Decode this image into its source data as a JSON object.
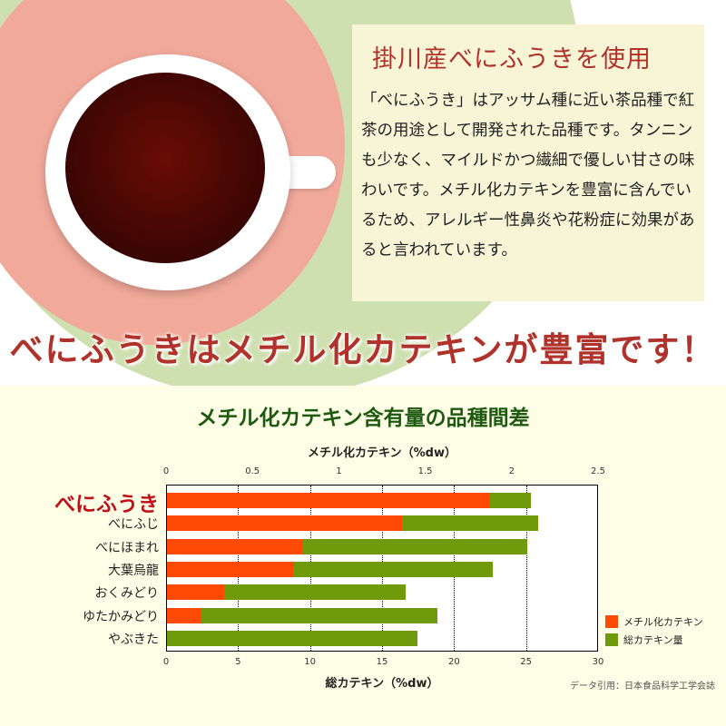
{
  "header": {
    "title": "掛川産べにふうきを使用",
    "body": "「べにふうき」はアッサム種に近い茶品種で紅茶の用途として開発された品種です。タンニンも少なく、マイルドかつ繊細で優しい甘さの味わいです。メチル化カテキンを豊富に含んでいるため、アレルギー性鼻炎や花粉症に効果があると言われています。"
  },
  "banner": "べにふうきはメチル化カテキンが豊富です！",
  "citation": "データ引用：日本食品科学工学会誌",
  "colors": {
    "methylated": "#ff4a05",
    "total": "#6e9a0c",
    "title": "#1d5a10",
    "accent": "#b0322a"
  },
  "chart_data": {
    "type": "bar",
    "orientation": "horizontal",
    "title": "メチル化カテキン含有量の品種間差",
    "categories": [
      "べにふうき",
      "べにふじ",
      "べにほまれ",
      "大葉烏龍",
      "おくみどり",
      "ゆたかみどり",
      "やぶきた"
    ],
    "highlight": "べにふうき",
    "top_axis": {
      "label": "メチル化カテキン（%dw）",
      "range": [
        0,
        2.5
      ],
      "ticks": [
        "0",
        "0.5",
        "1",
        "1.5",
        "2",
        "2.5"
      ]
    },
    "bottom_axis": {
      "label": "総カテキン（%dw）",
      "range": [
        0,
        30
      ],
      "ticks": [
        "0",
        "5",
        "10",
        "15",
        "20",
        "25",
        "30"
      ]
    },
    "grid": "vertical dotted",
    "legend_position": "right-bottom",
    "series": [
      {
        "name": "メチル化カテキン",
        "axis": "top",
        "values": [
          1.87,
          1.36,
          0.79,
          0.73,
          0.33,
          0.2,
          0
        ]
      },
      {
        "name": "総カテキン量",
        "axis": "bottom",
        "values": [
          25.3,
          25.8,
          25.0,
          22.6,
          16.6,
          18.8,
          17.4
        ]
      }
    ]
  }
}
